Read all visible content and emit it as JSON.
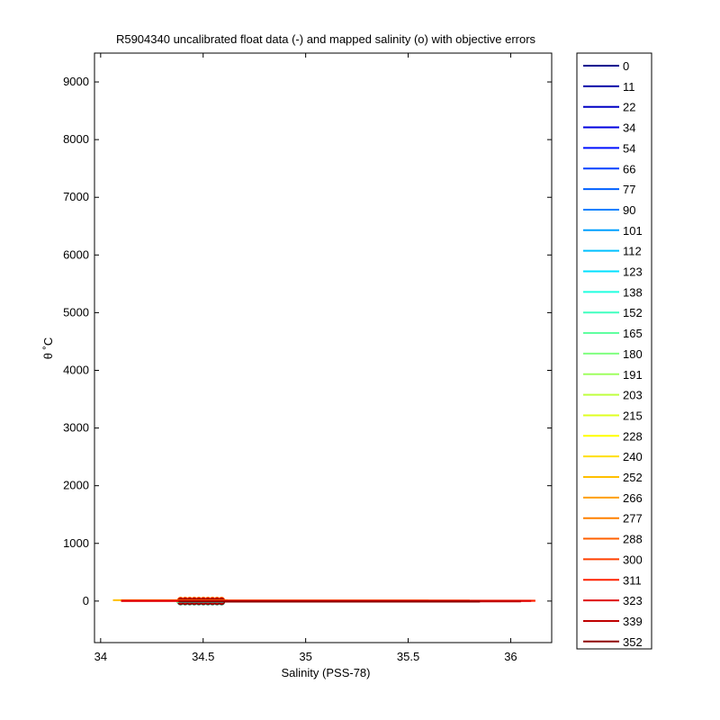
{
  "chart_data": {
    "type": "line",
    "title": "R5904340 uncalibrated float data (-) and mapped salinity (o) with objective errors",
    "xlabel": "Salinity (PSS-78)",
    "ylabel": "θ ˚C",
    "xlim": [
      33.97,
      36.2
    ],
    "ylim": [
      -720,
      9500
    ],
    "x_ticks": [
      "34",
      "34.5",
      "35",
      "35.5",
      "36"
    ],
    "x_tick_values": [
      34,
      34.5,
      35,
      35.5,
      36
    ],
    "y_ticks": [
      "0",
      "1000",
      "2000",
      "3000",
      "4000",
      "5000",
      "6000",
      "7000",
      "8000",
      "9000"
    ],
    "y_tick_values": [
      0,
      1000,
      2000,
      3000,
      4000,
      5000,
      6000,
      7000,
      8000,
      9000
    ],
    "legend_position": "outside-right",
    "series": [
      {
        "name": "0",
        "color": "#00008f",
        "x": [
          34.38,
          34.6
        ],
        "y": [
          20,
          20
        ]
      },
      {
        "name": "11",
        "color": "#0000a8",
        "x": [
          34.38,
          34.6
        ],
        "y": [
          18,
          18
        ]
      },
      {
        "name": "22",
        "color": "#0000c4",
        "x": [
          34.38,
          34.6
        ],
        "y": [
          16,
          16
        ]
      },
      {
        "name": "34",
        "color": "#0000df",
        "x": [
          34.38,
          34.6
        ],
        "y": [
          14,
          14
        ]
      },
      {
        "name": "54",
        "color": "#0010ff",
        "x": [
          34.38,
          34.6
        ],
        "y": [
          12,
          12
        ]
      },
      {
        "name": "66",
        "color": "#0040ff",
        "x": [
          34.38,
          34.6
        ],
        "y": [
          10,
          10
        ]
      },
      {
        "name": "77",
        "color": "#0060ff",
        "x": [
          34.38,
          34.6
        ],
        "y": [
          8,
          8
        ]
      },
      {
        "name": "90",
        "color": "#0080ff",
        "x": [
          34.38,
          34.6
        ],
        "y": [
          6,
          6
        ]
      },
      {
        "name": "101",
        "color": "#00a0ff",
        "x": [
          34.38,
          34.6
        ],
        "y": [
          4,
          4
        ]
      },
      {
        "name": "112",
        "color": "#00c0ff",
        "x": [
          34.38,
          34.6
        ],
        "y": [
          2,
          2
        ]
      },
      {
        "name": "123",
        "color": "#00e0ff",
        "x": [
          34.37,
          34.6
        ],
        "y": [
          0,
          0
        ]
      },
      {
        "name": "138",
        "color": "#20ffdf",
        "x": [
          34.37,
          34.6
        ],
        "y": [
          2,
          2
        ]
      },
      {
        "name": "152",
        "color": "#40ffbf",
        "x": [
          34.37,
          34.6
        ],
        "y": [
          4,
          4
        ]
      },
      {
        "name": "165",
        "color": "#60ff9f",
        "x": [
          34.37,
          34.6
        ],
        "y": [
          6,
          6
        ]
      },
      {
        "name": "180",
        "color": "#80ff80",
        "x": [
          34.37,
          34.6
        ],
        "y": [
          8,
          8
        ]
      },
      {
        "name": "191",
        "color": "#9fff60",
        "x": [
          34.37,
          34.6
        ],
        "y": [
          10,
          10
        ]
      },
      {
        "name": "203",
        "color": "#bfff40",
        "x": [
          34.37,
          34.62
        ],
        "y": [
          12,
          12
        ]
      },
      {
        "name": "215",
        "color": "#dfff20",
        "x": [
          34.37,
          34.62
        ],
        "y": [
          14,
          14
        ]
      },
      {
        "name": "228",
        "color": "#ffff00",
        "x": [
          34.37,
          34.62
        ],
        "y": [
          16,
          16
        ]
      },
      {
        "name": "240",
        "color": "#ffdf00",
        "x": [
          34.37,
          34.62
        ],
        "y": [
          18,
          18
        ]
      },
      {
        "name": "252",
        "color": "#ffbf00",
        "x": [
          34.06,
          34.62
        ],
        "y": [
          30,
          30
        ]
      },
      {
        "name": "266",
        "color": "#ff9f00",
        "x": [
          34.1,
          34.62
        ],
        "y": [
          28,
          28
        ]
      },
      {
        "name": "277",
        "color": "#ff8000",
        "x": [
          34.1,
          35.6
        ],
        "y": [
          26,
          26
        ]
      },
      {
        "name": "288",
        "color": "#ff6000",
        "x": [
          34.1,
          35.8
        ],
        "y": [
          24,
          24
        ]
      },
      {
        "name": "300",
        "color": "#ff4000",
        "x": [
          34.1,
          36.12
        ],
        "y": [
          22,
          22
        ]
      },
      {
        "name": "311",
        "color": "#ff2000",
        "x": [
          34.1,
          36.12
        ],
        "y": [
          20,
          20
        ]
      },
      {
        "name": "323",
        "color": "#df0000",
        "x": [
          34.1,
          36.1
        ],
        "y": [
          18,
          18
        ]
      },
      {
        "name": "339",
        "color": "#bf0000",
        "x": [
          34.38,
          36.05
        ],
        "y": [
          10,
          10
        ]
      },
      {
        "name": "352",
        "color": "#8f0000",
        "x": [
          34.38,
          35.85
        ],
        "y": [
          6,
          6
        ]
      }
    ]
  }
}
